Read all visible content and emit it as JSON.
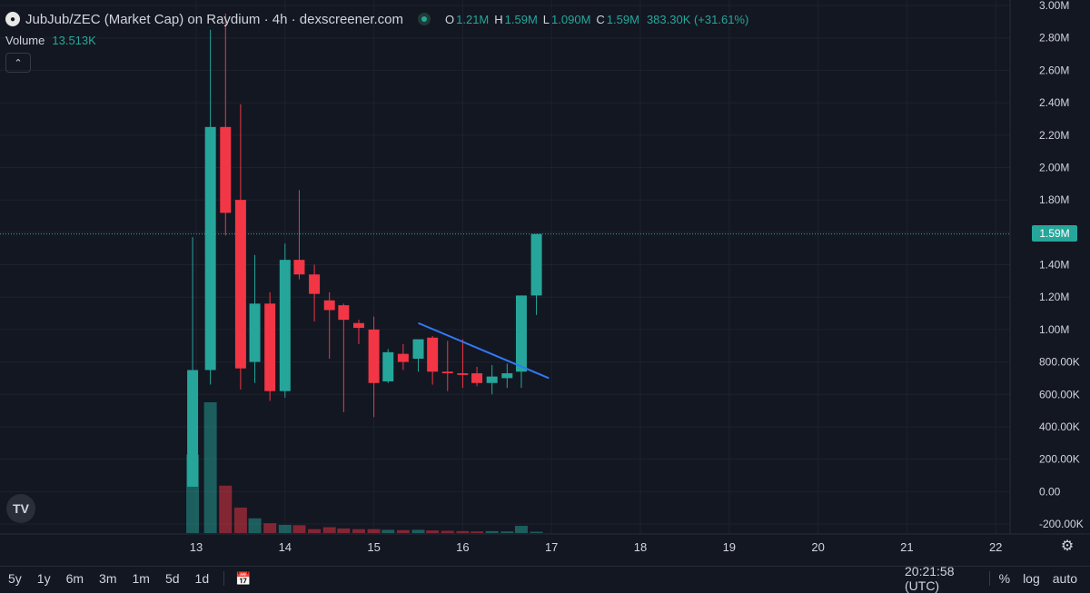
{
  "legend": {
    "title": "JubJub/ZEC (Market Cap) on Raydium · 4h · dexscreener.com",
    "o_label": "O",
    "o_value": "1.21M",
    "h_label": "H",
    "h_value": "1.59M",
    "l_label": "L",
    "l_value": "1.090M",
    "c_label": "C",
    "c_value": "1.59M",
    "change": "383.30K (+31.61%)"
  },
  "volume_legend": {
    "label": "Volume",
    "value": "13.513K"
  },
  "last_price_tag": "1.59M",
  "logo_text": "TV",
  "toolbar": {
    "ranges": [
      "5y",
      "1y",
      "6m",
      "3m",
      "1m",
      "5d",
      "1d"
    ],
    "time": "20:21:58 (UTC)",
    "percent": "%",
    "log": "log",
    "auto": "auto"
  },
  "colors": {
    "up": "#26a69a",
    "down": "#f23645",
    "trendline": "#3179f5",
    "background": "#131722"
  },
  "chart_data": {
    "type": "candlestick",
    "title": "JubJub/ZEC (Market Cap) on Raydium · 4h · dexscreener.com",
    "timeframe": "4h",
    "y_ticks": [
      "3.00M",
      "2.80M",
      "2.60M",
      "2.40M",
      "2.20M",
      "2.00M",
      "1.80M",
      "1.60M",
      "1.40M",
      "1.20M",
      "1.00M",
      "800.00K",
      "600.00K",
      "400.00K",
      "200.00K",
      "0.00",
      "-200.00K"
    ],
    "x_ticks": [
      "13",
      "14",
      "15",
      "16",
      "17",
      "18",
      "19",
      "20",
      "21",
      "22"
    ],
    "ylim": [
      -200000,
      3000000
    ],
    "candles": [
      {
        "x": 12.96,
        "o": 30000,
        "h": 1570000,
        "l": 30000,
        "c": 750000,
        "vol": 2.4
      },
      {
        "x": 13.16,
        "o": 750000,
        "h": 2850000,
        "l": 660000,
        "c": 2250000,
        "vol": 4.0
      },
      {
        "x": 13.33,
        "o": 2250000,
        "h": 2950000,
        "l": 1580000,
        "c": 1720000,
        "vol": 1.45
      },
      {
        "x": 13.5,
        "o": 1800000,
        "h": 2390000,
        "l": 630000,
        "c": 760000,
        "vol": 0.78
      },
      {
        "x": 13.66,
        "o": 800000,
        "h": 1460000,
        "l": 670000,
        "c": 1160000,
        "vol": 0.45
      },
      {
        "x": 13.83,
        "o": 1160000,
        "h": 1230000,
        "l": 560000,
        "c": 620000,
        "vol": 0.3
      },
      {
        "x": 14.0,
        "o": 620000,
        "h": 1530000,
        "l": 580000,
        "c": 1430000,
        "vol": 0.25
      },
      {
        "x": 14.16,
        "o": 1430000,
        "h": 1860000,
        "l": 1310000,
        "c": 1340000,
        "vol": 0.24
      },
      {
        "x": 14.33,
        "o": 1340000,
        "h": 1400000,
        "l": 1050000,
        "c": 1220000,
        "vol": 0.12
      },
      {
        "x": 14.5,
        "o": 1180000,
        "h": 1230000,
        "l": 820000,
        "c": 1120000,
        "vol": 0.18
      },
      {
        "x": 14.66,
        "o": 1150000,
        "h": 1160000,
        "l": 490000,
        "c": 1060000,
        "vol": 0.14
      },
      {
        "x": 14.83,
        "o": 1040000,
        "h": 1060000,
        "l": 910000,
        "c": 1010000,
        "vol": 0.12
      },
      {
        "x": 15.0,
        "o": 1000000,
        "h": 1080000,
        "l": 460000,
        "c": 670000,
        "vol": 0.12
      },
      {
        "x": 15.16,
        "o": 680000,
        "h": 880000,
        "l": 670000,
        "c": 860000,
        "vol": 0.1
      },
      {
        "x": 15.33,
        "o": 850000,
        "h": 910000,
        "l": 750000,
        "c": 800000,
        "vol": 0.09
      },
      {
        "x": 15.5,
        "o": 820000,
        "h": 930000,
        "l": 740000,
        "c": 940000,
        "vol": 0.1
      },
      {
        "x": 15.66,
        "o": 950000,
        "h": 960000,
        "l": 660000,
        "c": 740000,
        "vol": 0.08
      },
      {
        "x": 15.83,
        "o": 740000,
        "h": 930000,
        "l": 620000,
        "c": 730000,
        "vol": 0.07
      },
      {
        "x": 16.0,
        "o": 730000,
        "h": 940000,
        "l": 640000,
        "c": 720000,
        "vol": 0.06
      },
      {
        "x": 16.16,
        "o": 730000,
        "h": 770000,
        "l": 650000,
        "c": 670000,
        "vol": 0.05
      },
      {
        "x": 16.33,
        "o": 670000,
        "h": 780000,
        "l": 600000,
        "c": 710000,
        "vol": 0.06
      },
      {
        "x": 16.5,
        "o": 700000,
        "h": 790000,
        "l": 640000,
        "c": 730000,
        "vol": 0.05
      },
      {
        "x": 16.66,
        "o": 740000,
        "h": 1210000,
        "l": 640000,
        "c": 1210000,
        "vol": 0.22
      },
      {
        "x": 16.83,
        "o": 1210000,
        "h": 1590000,
        "l": 1090000,
        "c": 1590000,
        "vol": 0.04
      }
    ],
    "trendline": {
      "x1": 15.5,
      "y1": 1040000,
      "x2": 16.97,
      "y2": 700000
    },
    "last_price": 1590000,
    "grid": true
  }
}
